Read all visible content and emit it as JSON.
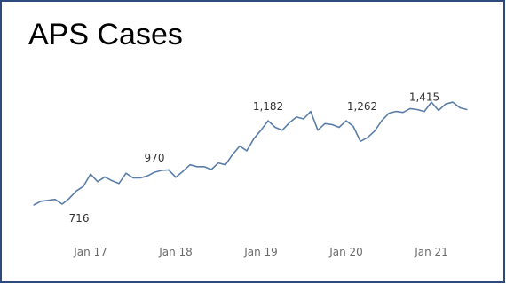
{
  "chart_data": {
    "type": "line",
    "title": "APS Cases",
    "xlabel": "",
    "ylabel": "",
    "x_tick_labels": [
      {
        "label": "Jan 17",
        "x": 8
      },
      {
        "label": "Jan 18",
        "x": 20
      },
      {
        "label": "Jan 19",
        "x": 32
      },
      {
        "label": "Jan 20",
        "x": 44
      },
      {
        "label": "Jan 21",
        "x": 56
      }
    ],
    "x_range": [
      0,
      61
    ],
    "ylim": [
      650,
      1480
    ],
    "line_color": "#5b7ea8",
    "grid": false,
    "series": [
      {
        "values": [
          [
            0,
            740
          ],
          [
            1,
            760
          ],
          [
            2,
            765
          ],
          [
            3,
            770
          ],
          [
            4,
            745
          ],
          [
            5,
            775
          ],
          [
            6,
            815
          ],
          [
            7,
            840
          ],
          [
            8,
            905
          ],
          [
            9,
            865
          ],
          [
            10,
            890
          ],
          [
            11,
            870
          ],
          [
            12,
            855
          ],
          [
            13,
            910
          ],
          [
            14,
            885
          ],
          [
            15,
            885
          ],
          [
            16,
            895
          ],
          [
            17,
            915
          ],
          [
            18,
            925
          ],
          [
            19,
            928
          ],
          [
            20,
            888
          ],
          [
            21,
            920
          ],
          [
            22,
            955
          ],
          [
            23,
            945
          ],
          [
            24,
            945
          ],
          [
            25,
            930
          ],
          [
            26,
            965
          ],
          [
            27,
            955
          ],
          [
            28,
            1010
          ],
          [
            29,
            1055
          ],
          [
            30,
            1030
          ],
          [
            31,
            1095
          ],
          [
            32,
            1140
          ],
          [
            33,
            1190
          ],
          [
            34,
            1155
          ],
          [
            35,
            1140
          ],
          [
            36,
            1180
          ],
          [
            37,
            1210
          ],
          [
            38,
            1200
          ],
          [
            39,
            1240
          ],
          [
            40,
            1140
          ],
          [
            41,
            1175
          ],
          [
            42,
            1170
          ],
          [
            43,
            1155
          ],
          [
            44,
            1190
          ],
          [
            45,
            1160
          ],
          [
            46,
            1080
          ],
          [
            47,
            1100
          ],
          [
            48,
            1135
          ],
          [
            49,
            1190
          ],
          [
            50,
            1230
          ],
          [
            51,
            1240
          ],
          [
            52,
            1235
          ],
          [
            53,
            1255
          ],
          [
            54,
            1250
          ],
          [
            55,
            1240
          ],
          [
            56,
            1290
          ],
          [
            57,
            1245
          ],
          [
            58,
            1280
          ],
          [
            59,
            1290
          ],
          [
            60,
            1260
          ],
          [
            61,
            1250
          ]
        ]
      }
    ],
    "data_labels": [
      {
        "text": "716",
        "x": 5,
        "y": 745
      },
      {
        "text": "970",
        "x": 17,
        "y": 915
      },
      {
        "text": "1,182",
        "x": 33,
        "y": 1190
      },
      {
        "text": "1,262",
        "x": 44,
        "y": 1190
      },
      {
        "text": "1,415",
        "x": 55,
        "y": 1240
      }
    ]
  }
}
